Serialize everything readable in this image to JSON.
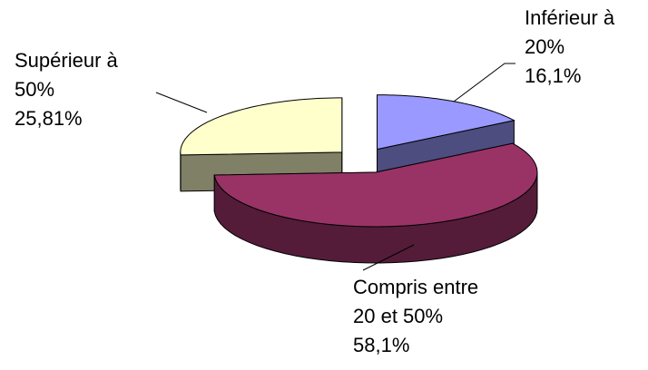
{
  "chart_data": {
    "type": "pie",
    "style": "3d-exploded",
    "slices": [
      {
        "lines": [
          "Inférieur à",
          "20%",
          "16,1%"
        ],
        "value": 16.1,
        "color": "#9999FF"
      },
      {
        "lines": [
          "Compris entre",
          "20 et 50%",
          "58,1%"
        ],
        "value": 58.1,
        "color": "#993366"
      },
      {
        "lines": [
          "Supérieur à",
          "50%",
          "25,81%"
        ],
        "value": 25.81,
        "color": "#FFFFCC"
      }
    ],
    "legend": "none"
  }
}
